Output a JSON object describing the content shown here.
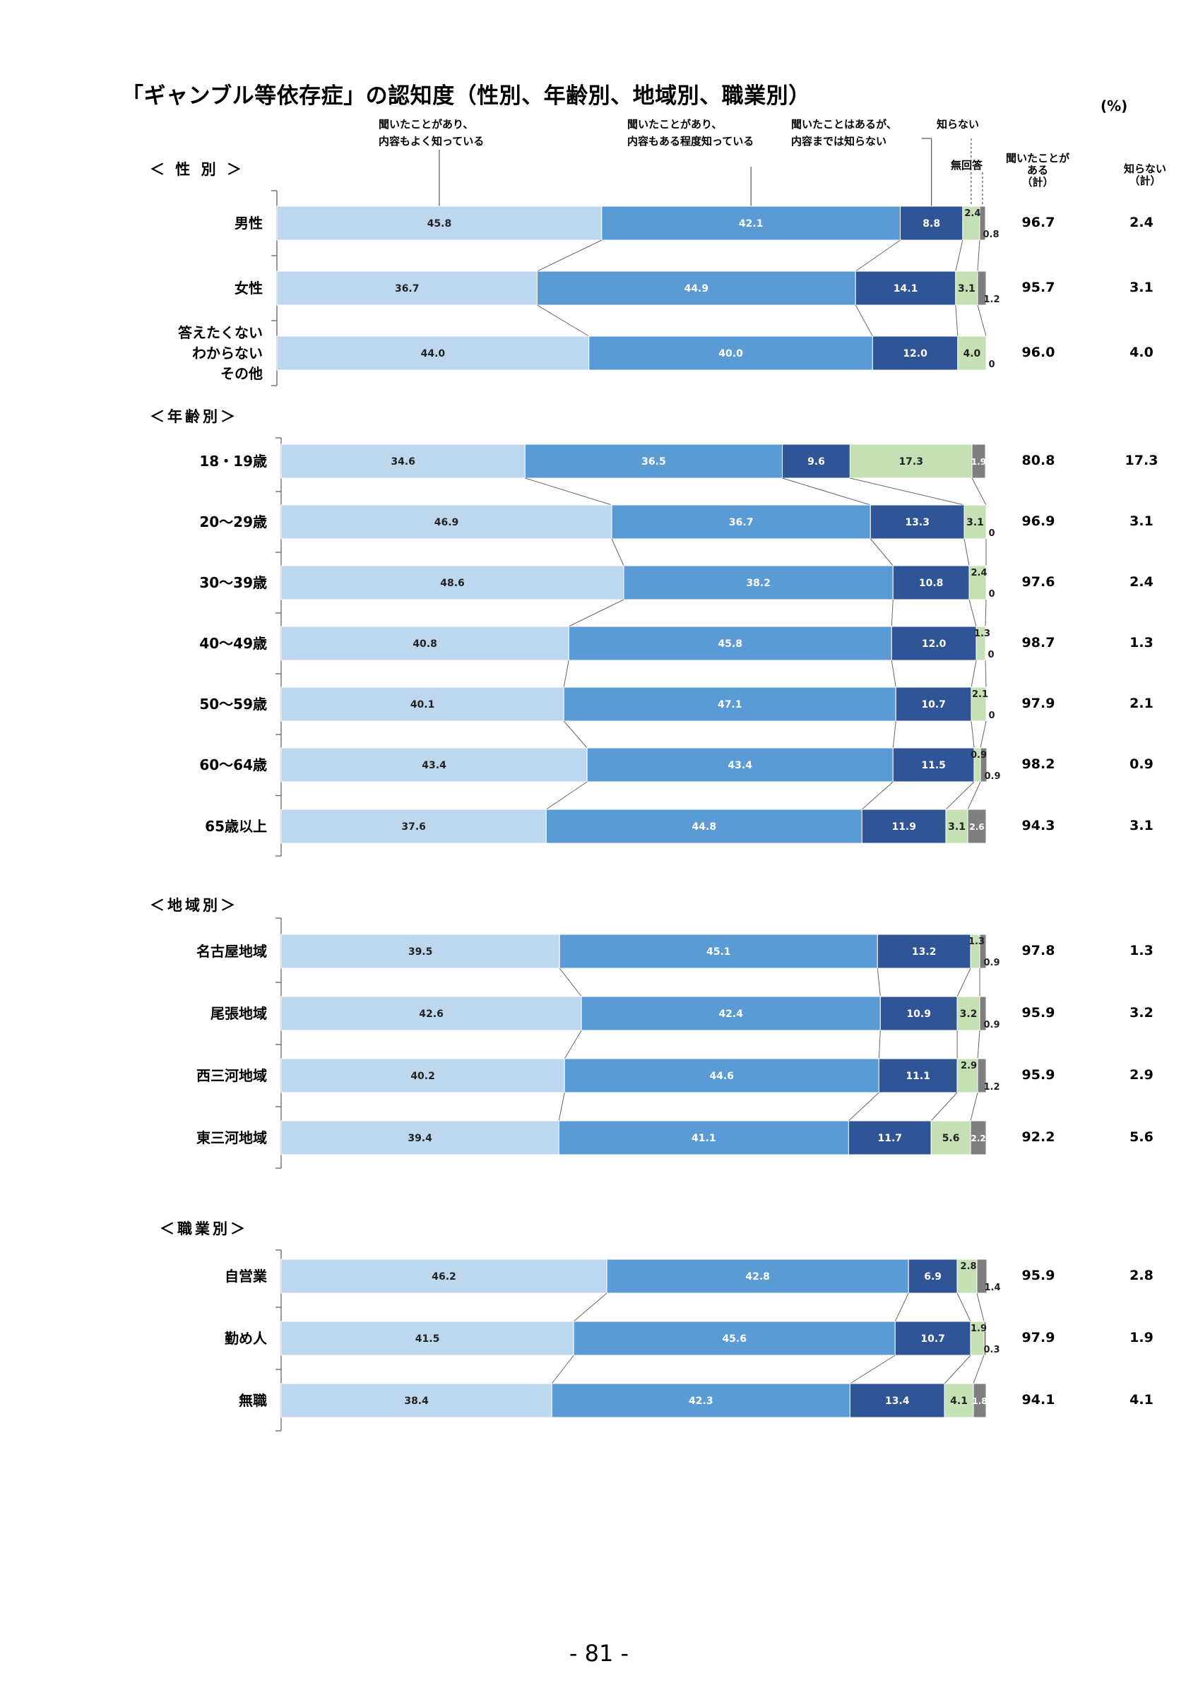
{
  "title": "「ギャンブル等依存症」の認知度（性別、年齢別、地域別、職業別）",
  "unit": "(%)",
  "legend": [
    {
      "line1": "聞いたことがあり、",
      "line2": "内容もよく知っている"
    },
    {
      "line1": "聞いたことがあり、",
      "line2": "内容もある程度知っている"
    },
    {
      "line1": "聞いたことはあるが、",
      "line2": "内容までは知らない"
    },
    {
      "line1": "知らない",
      "line2": ""
    },
    {
      "line1": "無回答",
      "line2": ""
    }
  ],
  "headers": {
    "heard_total": [
      "聞いたことが",
      "ある",
      "（計）"
    ],
    "dont_know_total": [
      "知らない",
      "（計）"
    ]
  },
  "colors": {
    "very_well": "#bdd7ee",
    "somewhat": "#5b9bd5",
    "not_content": "#2f5597",
    "dont_know": "#c5e0b4",
    "no_answer": "#7f7f7f"
  },
  "page_number": "- 81 -",
  "chart_data": {
    "type": "bar",
    "orientation": "horizontal",
    "stacked": true,
    "xlim": [
      0,
      100
    ],
    "series_names": [
      "聞いたことがあり、内容もよく知っている",
      "聞いたことがあり、内容もある程度知っている",
      "聞いたことはあるが、内容までは知らない",
      "知らない",
      "無回答"
    ],
    "groups": [
      {
        "title": "＜ 性 別 ＞",
        "rows": [
          {
            "label": "男性",
            "values": [
              45.8,
              42.1,
              8.8,
              2.4,
              0.8
            ],
            "heard_total": "96.7",
            "dont_know_total": "2.4"
          },
          {
            "label": "女性",
            "values": [
              36.7,
              44.9,
              14.1,
              3.1,
              1.2
            ],
            "heard_total": "95.7",
            "dont_know_total": "3.1"
          },
          {
            "label": "答えたくない\nわからない\nその他",
            "values": [
              44.0,
              40.0,
              12.0,
              4.0,
              0
            ],
            "heard_total": "96.0",
            "dont_know_total": "4.0"
          }
        ]
      },
      {
        "title": "＜年齢別＞",
        "rows": [
          {
            "label": "18・19歳",
            "values": [
              34.6,
              36.5,
              9.6,
              17.3,
              1.9
            ],
            "heard_total": "80.8",
            "dont_know_total": "17.3"
          },
          {
            "label": "20～29歳",
            "values": [
              46.9,
              36.7,
              13.3,
              3.1,
              0
            ],
            "heard_total": "96.9",
            "dont_know_total": "3.1"
          },
          {
            "label": "30～39歳",
            "values": [
              48.6,
              38.2,
              10.8,
              2.4,
              0
            ],
            "heard_total": "97.6",
            "dont_know_total": "2.4"
          },
          {
            "label": "40～49歳",
            "values": [
              40.8,
              45.8,
              12.0,
              1.3,
              0
            ],
            "heard_total": "98.7",
            "dont_know_total": "1.3"
          },
          {
            "label": "50～59歳",
            "values": [
              40.1,
              47.1,
              10.7,
              2.1,
              0
            ],
            "heard_total": "97.9",
            "dont_know_total": "2.1"
          },
          {
            "label": "60～64歳",
            "values": [
              43.4,
              43.4,
              11.5,
              0.9,
              0.9
            ],
            "heard_total": "98.2",
            "dont_know_total": "0.9"
          },
          {
            "label": "65歳以上",
            "values": [
              37.6,
              44.8,
              11.9,
              3.1,
              2.6
            ],
            "heard_total": "94.3",
            "dont_know_total": "3.1"
          }
        ]
      },
      {
        "title": "＜地域別＞",
        "rows": [
          {
            "label": "名古屋地域",
            "values": [
              39.5,
              45.1,
              13.2,
              1.3,
              0.9
            ],
            "heard_total": "97.8",
            "dont_know_total": "1.3"
          },
          {
            "label": "尾張地域",
            "values": [
              42.6,
              42.4,
              10.9,
              3.2,
              0.9
            ],
            "heard_total": "95.9",
            "dont_know_total": "3.2"
          },
          {
            "label": "西三河地域",
            "values": [
              40.2,
              44.6,
              11.1,
              2.9,
              1.2
            ],
            "heard_total": "95.9",
            "dont_know_total": "2.9"
          },
          {
            "label": "東三河地域",
            "values": [
              39.4,
              41.1,
              11.7,
              5.6,
              2.2
            ],
            "heard_total": "92.2",
            "dont_know_total": "5.6"
          }
        ]
      },
      {
        "title": "＜職業別＞",
        "rows": [
          {
            "label": "自営業",
            "values": [
              46.2,
              42.8,
              6.9,
              2.8,
              1.4
            ],
            "heard_total": "95.9",
            "dont_know_total": "2.8"
          },
          {
            "label": "勤め人",
            "values": [
              41.5,
              45.6,
              10.7,
              1.9,
              0.3
            ],
            "heard_total": "97.9",
            "dont_know_total": "1.9"
          },
          {
            "label": "無職",
            "values": [
              38.4,
              42.3,
              13.4,
              4.1,
              1.8
            ],
            "heard_total": "94.1",
            "dont_know_total": "4.1"
          }
        ]
      }
    ]
  }
}
